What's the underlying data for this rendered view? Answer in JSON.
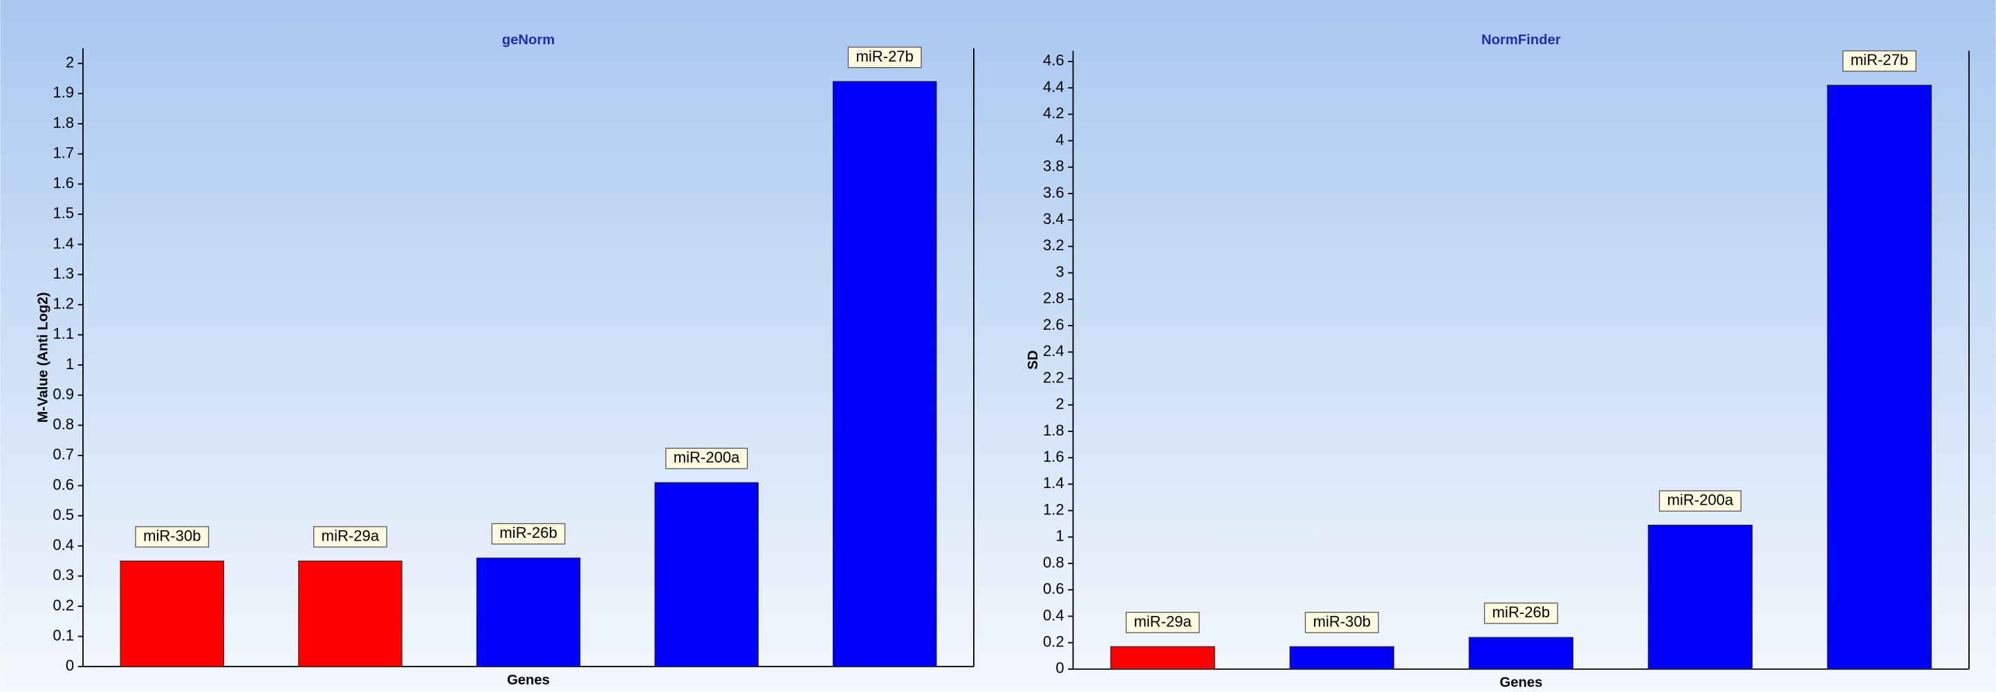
{
  "chart_data": [
    {
      "type": "bar",
      "title": "geNorm",
      "y_label": "M-Value (Anti Log2)",
      "x_label": "Genes",
      "categories": [
        "miR-30b",
        "miR-29a",
        "miR-26b",
        "miR-200a",
        "miR-27b"
      ],
      "values": [
        0.35,
        0.35,
        0.36,
        0.61,
        1.94
      ],
      "colors": [
        "#ff0000",
        "#ff0000",
        "#0000ff",
        "#0000ff",
        "#0000ff"
      ],
      "ylim": [
        0,
        2.05
      ],
      "yticks": [
        0,
        0.1,
        0.2,
        0.3,
        0.4,
        0.5,
        0.6,
        0.7,
        0.8,
        0.9,
        1,
        1.1,
        1.2,
        1.3,
        1.4,
        1.5,
        1.6,
        1.7,
        1.8,
        1.9,
        2
      ]
    },
    {
      "type": "bar",
      "title": "NormFinder",
      "y_label": "SD",
      "x_label": "Genes",
      "categories": [
        "miR-29a",
        "miR-30b",
        "miR-26b",
        "miR-200a",
        "miR-27b"
      ],
      "values": [
        0.17,
        0.17,
        0.24,
        1.09,
        4.42
      ],
      "colors": [
        "#ff0000",
        "#0000ff",
        "#0000ff",
        "#0000ff",
        "#0000ff"
      ],
      "ylim": [
        0,
        4.68
      ],
      "yticks": [
        0,
        0.2,
        0.4,
        0.6,
        0.8,
        1,
        1.2,
        1.4,
        1.6,
        1.8,
        2,
        2.2,
        2.4,
        2.6,
        2.8,
        3,
        3.2,
        3.4,
        3.6,
        3.8,
        4,
        4.2,
        4.4,
        4.6
      ]
    }
  ]
}
